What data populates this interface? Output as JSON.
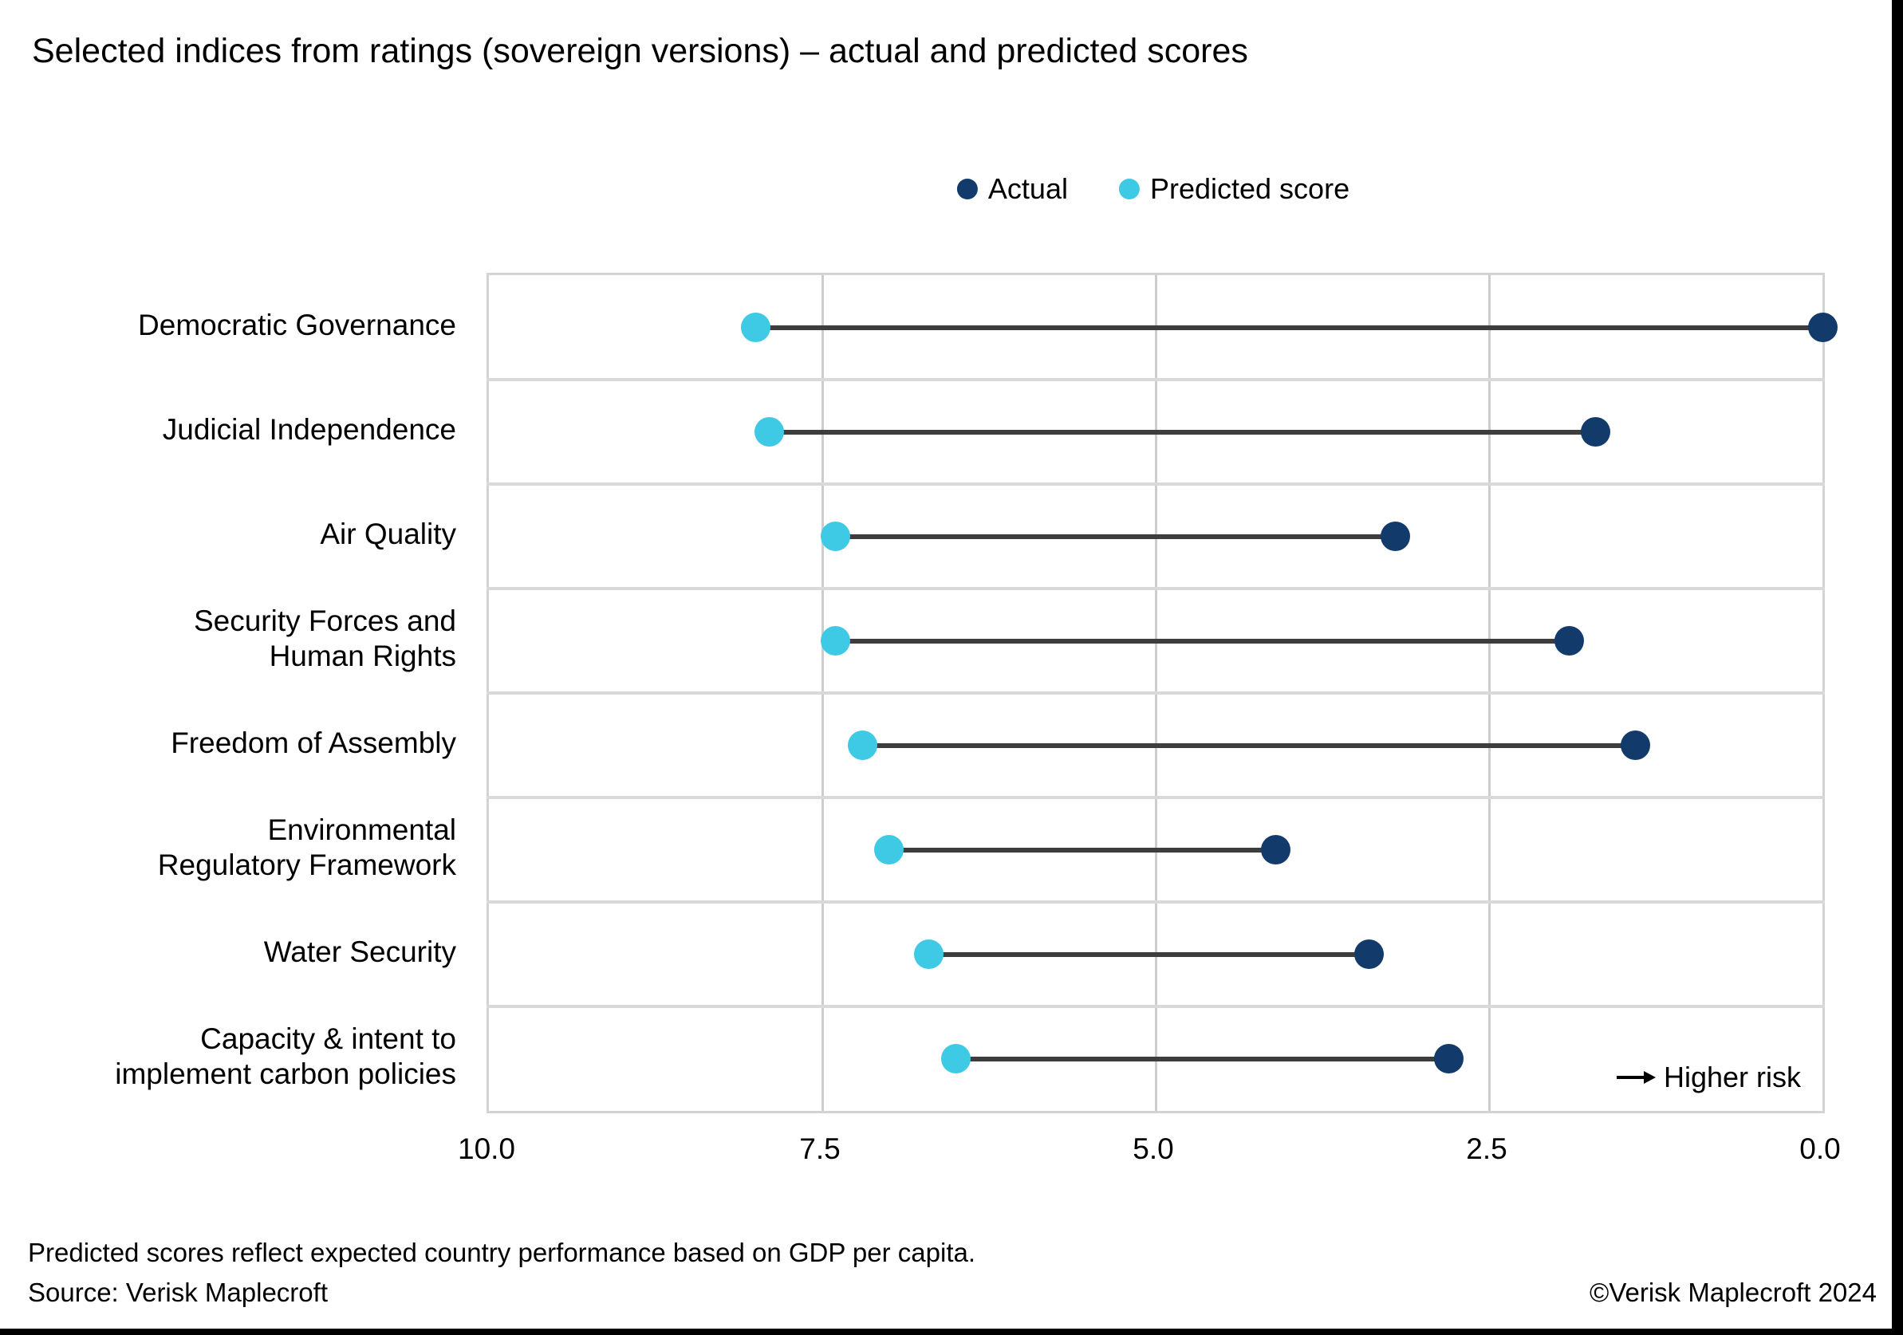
{
  "title": "Selected indices from ratings (sovereign versions) – actual and predicted scores",
  "legend": {
    "items": [
      {
        "name": "actual",
        "label": "Actual",
        "color": "#123a6b"
      },
      {
        "name": "predicted",
        "label": "Predicted score",
        "color": "#3ec9e4"
      }
    ]
  },
  "chart_data": {
    "type": "dumbbell",
    "title": "Selected indices from ratings (sovereign versions) – actual and predicted scores",
    "categories": [
      "Democratic Governance",
      "Judicial Independence",
      "Air Quality",
      "Security Forces and\nHuman Rights",
      "Freedom of Assembly",
      "Environmental\nRegulatory Framework",
      "Water Security",
      "Capacity & intent to\nimplement carbon policies"
    ],
    "series": [
      {
        "name": "Actual",
        "color": "#123a6b",
        "values": [
          0.0,
          1.7,
          3.2,
          1.9,
          1.4,
          4.1,
          3.4,
          2.8
        ]
      },
      {
        "name": "Predicted score",
        "color": "#3ec9e4",
        "values": [
          8.0,
          7.9,
          7.4,
          7.4,
          7.2,
          7.0,
          6.7,
          6.5
        ]
      }
    ],
    "x_axis": {
      "min": 0,
      "max": 10,
      "reversed": true,
      "tick_values": [
        10.0,
        7.5,
        5.0,
        2.5,
        0.0
      ],
      "tick_labels": [
        "10.0",
        "7.5",
        "5.0",
        "2.5",
        "0.0"
      ],
      "inner_gridlines_at": [
        7.5,
        5.0,
        2.5
      ]
    },
    "annotation": {
      "text": "Higher risk"
    },
    "connector_color": "#3d3d3d",
    "grid_on": true,
    "legend_position": "top-center"
  },
  "footer": {
    "note": "Predicted scores reflect expected country performance based on GDP per capita.",
    "source": "Source: Verisk Maplecroft",
    "copyright": "©Verisk Maplecroft 2024"
  }
}
